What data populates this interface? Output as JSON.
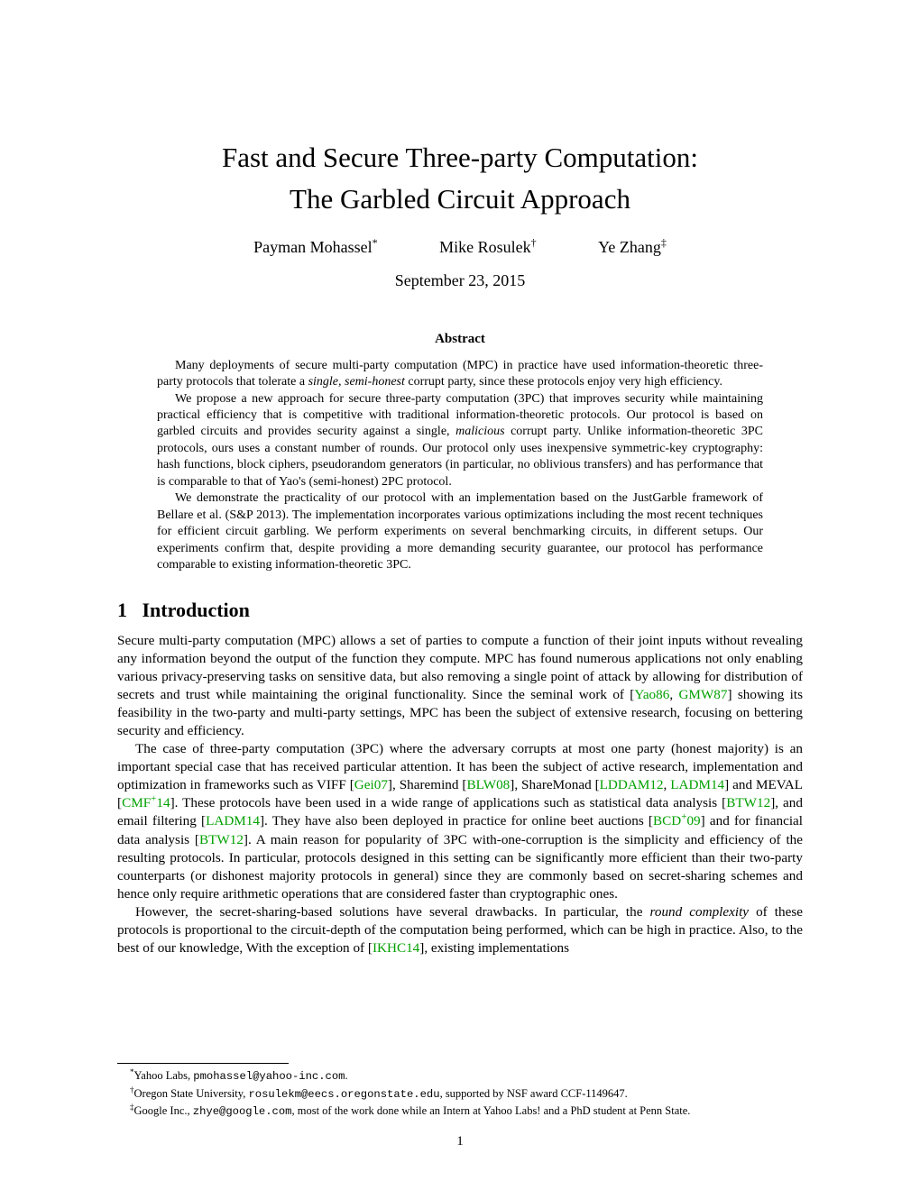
{
  "title_line1": "Fast and Secure Three-party Computation:",
  "title_line2": "The Garbled Circuit Approach",
  "authors": [
    {
      "name": "Payman Mohassel",
      "mark": "*"
    },
    {
      "name": "Mike Rosulek",
      "mark": "†"
    },
    {
      "name": "Ye Zhang",
      "mark": "‡"
    }
  ],
  "date": "September 23, 2015",
  "abstract_heading": "Abstract",
  "abstract": {
    "p1a": "Many deployments of secure multi-party computation (MPC) in practice have used information-theoretic three-party protocols that tolerate a ",
    "p1b": "single, semi-honest",
    "p1c": " corrupt party, since these protocols enjoy very high efficiency.",
    "p2a": "We propose a new approach for secure three-party computation (3PC) that improves security while maintaining practical efficiency that is competitive with traditional information-theoretic protocols. Our protocol is based on garbled circuits and provides security against a single, ",
    "p2b": "malicious",
    "p2c": " corrupt party. Unlike information-theoretic 3PC protocols, ours uses a constant number of rounds. Our protocol only uses inexpensive symmetric-key cryptography: hash functions, block ciphers, pseudorandom generators (in particular, no oblivious transfers) and has performance that is comparable to that of Yao's (semi-honest) 2PC protocol.",
    "p3": "We demonstrate the practicality of our protocol with an implementation based on the JustGarble framework of Bellare et al. (S&P 2013). The implementation incorporates various optimizations including the most recent techniques for efficient circuit garbling. We perform experiments on several benchmarking circuits, in different setups. Our experiments confirm that, despite providing a more demanding security guarantee, our protocol has performance comparable to existing information-theoretic 3PC."
  },
  "section_num": "1",
  "section_title": "Introduction",
  "body": {
    "p1a": "Secure multi-party computation (MPC) allows a set of parties to compute a function of their joint inputs without revealing any information beyond the output of the function they compute. MPC has found numerous applications not only enabling various privacy-preserving tasks on sensitive data, but also removing a single point of attack by allowing for distribution of secrets and trust while maintaining the original functionality. Since the seminal work of [",
    "c1": "Yao86",
    "p1b": ", ",
    "c2": "GMW87",
    "p1c": "] showing its feasibility in the two-party and multi-party settings, MPC has been the subject of extensive research, focusing on bettering security and efficiency.",
    "p2a": "The case of three-party computation (3PC) where the adversary corrupts at most one party (honest majority) is an important special case that has received particular attention. It has been the subject of active research, implementation and optimization in frameworks such as VIFF [",
    "c3": "Gei07",
    "p2b": "], Sharemind [",
    "c4": "BLW08",
    "p2c": "], ShareMonad [",
    "c5": "LDDAM12",
    "p2d": ", ",
    "c6": "LADM14",
    "p2e": "] and MEVAL [",
    "c7": "CMF",
    "c7plus": "+",
    "c7b": "14",
    "p2f": "]. These protocols have been used in a wide range of applications such as statistical data analysis [",
    "c8": "BTW12",
    "p2g": "], and email filtering [",
    "c9": "LADM14",
    "p2h": "]. They have also been deployed in practice for online beet auctions [",
    "c10": "BCD",
    "c10plus": "+",
    "c10b": "09",
    "p2i": "] and for financial data analysis [",
    "c11": "BTW12",
    "p2j": "]. A main reason for popularity of 3PC with-one-corruption is the simplicity and efficiency of the resulting protocols. In particular, protocols designed in this setting can be significantly more efficient than their two-party counterparts (or dishonest majority protocols in general) since they are commonly based on secret-sharing schemes and hence only require arithmetic operations that are considered faster than cryptographic ones.",
    "p3a": "However, the secret-sharing-based solutions have several drawbacks. In particular, the ",
    "p3b": "round complexity",
    "p3c": " of these protocols is proportional to the circuit-depth of the computation being performed, which can be high in practice. Also, to the best of our knowledge, With the exception of [",
    "c12": "IKHC14",
    "p3d": "], existing implementations"
  },
  "footnotes": {
    "f1mark": "*",
    "f1a": "Yahoo Labs, ",
    "f1b": "pmohassel@yahoo-inc.com",
    "f1c": ".",
    "f2mark": "†",
    "f2a": "Oregon State University, ",
    "f2b": "rosulekm@eecs.oregonstate.edu",
    "f2c": ", supported by NSF award CCF-1149647.",
    "f3mark": "‡",
    "f3a": "Google Inc., ",
    "f3b": "zhye@google.com",
    "f3c": ", most of the work done while an Intern at Yahoo Labs! and a PhD student at Penn State."
  },
  "page_number": "1",
  "colors": {
    "cite": "#00a000",
    "text": "#000000",
    "background": "#ffffff"
  }
}
